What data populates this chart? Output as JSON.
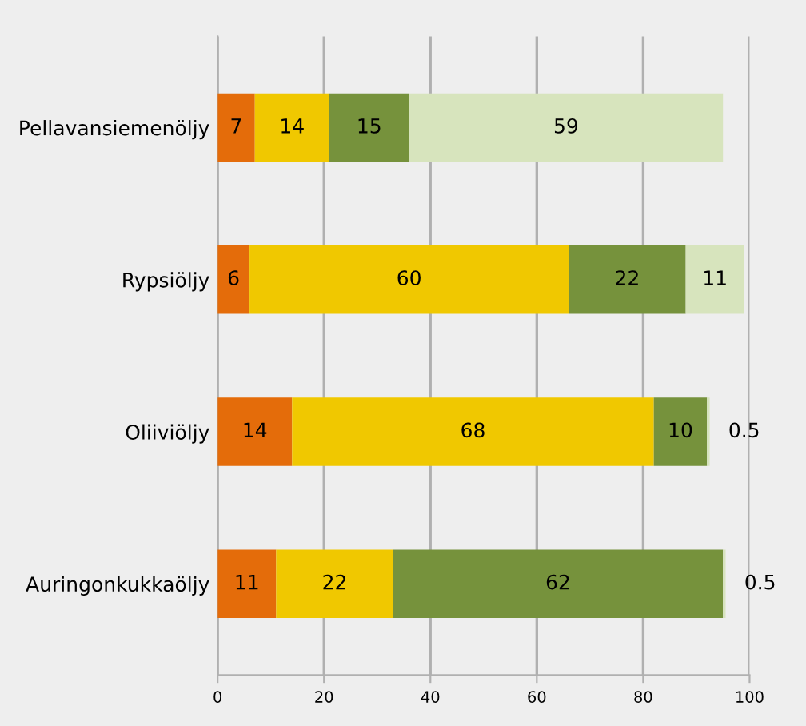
{
  "chart_data": {
    "type": "bar",
    "orientation": "horizontal",
    "stacked": true,
    "categories": [
      "Pellavansiemenöljy",
      "Rypsiöljy",
      "Oliiviöljy",
      "Auringonkukkaöljy"
    ],
    "series": [
      {
        "color": "#e46c0a",
        "values": [
          7,
          6,
          14,
          11
        ]
      },
      {
        "color": "#f0c800",
        "values": [
          14,
          60,
          68,
          22
        ]
      },
      {
        "color": "#76923c",
        "values": [
          15,
          22,
          10,
          62
        ]
      },
      {
        "color": "#d7e4bd",
        "values": [
          59,
          11,
          0.5,
          0.5
        ]
      }
    ],
    "xlim": [
      0,
      100
    ],
    "xticks": [
      0,
      20,
      40,
      60,
      80,
      100
    ],
    "grid": "x",
    "data_labels": true
  }
}
